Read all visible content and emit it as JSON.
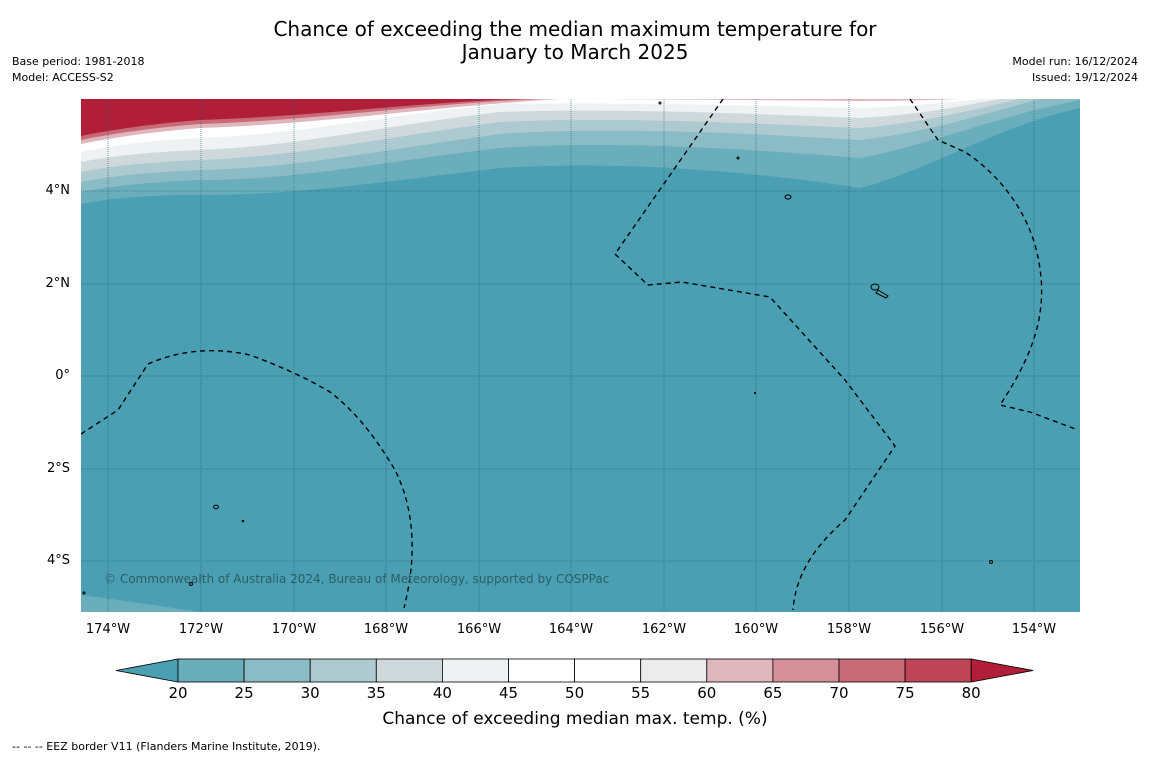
{
  "title_line1": "Chance of exceeding the median maximum temperature for",
  "title_line2": "January to March 2025",
  "base_period": "Base period: 1981-2018",
  "model": "Model: ACCESS-S2",
  "model_run": "Model run: 16/12/2024",
  "issued": "Issued: 19/12/2024",
  "copyright": "© Commonwealth of Australia 2024, Bureau of Meteorology, supported by COSPPac",
  "footer": "--  --  -- EEZ border V11 (Flanders Marine Institute, 2019).",
  "colorbar_title": "Chance of exceeding median max. temp. (%)",
  "colorbar_ticks": [
    "20",
    "25",
    "30",
    "35",
    "40",
    "45",
    "50",
    "55",
    "60",
    "65",
    "70",
    "75",
    "80"
  ],
  "colorbar_colors": [
    "#4aa0b2",
    "#6aaebb",
    "#8bbcc5",
    "#adcad0",
    "#cfd9db",
    "#eef2f3",
    "#ffffff",
    "#ffffff",
    "#ececec",
    "#e0b6bd",
    "#d5909a",
    "#c96a77",
    "#be4555",
    "#b01e38"
  ],
  "lat_labels": [
    "4°N",
    "2°N",
    "0°",
    "2°S",
    "4°S"
  ],
  "lon_labels": [
    "174°W",
    "172°W",
    "170°W",
    "168°W",
    "166°W",
    "164°W",
    "162°W",
    "160°W",
    "158°W",
    "156°W",
    "154°W"
  ],
  "colors": {
    "ocean": "#4aa0b2",
    "hot": "#b01e38",
    "grid": "#1f5a66"
  }
}
